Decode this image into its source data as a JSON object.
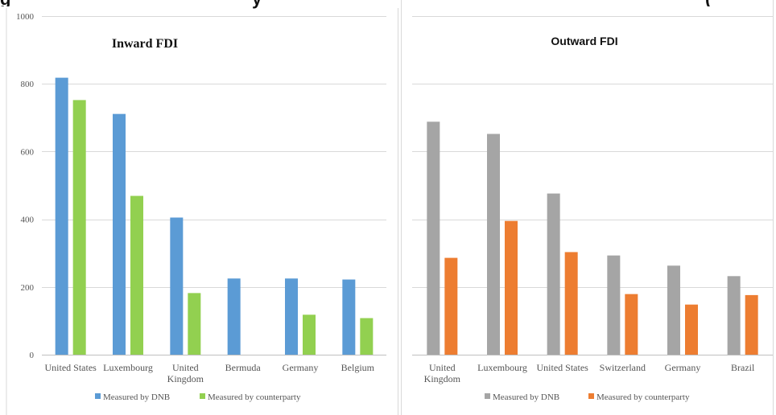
{
  "header": {
    "left_fragment": "g",
    "middle_fragment": "y",
    "right_fragment": "("
  },
  "chart_data": [
    {
      "type": "bar",
      "title": "Inward FDI",
      "categories": [
        "United States",
        "Luxembourg",
        "United Kingdom",
        "Bermuda",
        "Germany",
        "Belgium"
      ],
      "ylim": [
        0,
        1000
      ],
      "yticks": [
        0,
        200,
        400,
        600,
        800,
        1000
      ],
      "grid": true,
      "legend_position": "bottom",
      "series": [
        {
          "name": "Measured by DNB",
          "color": "#5B9BD5",
          "values": [
            818,
            711,
            405,
            225,
            225,
            222
          ]
        },
        {
          "name": "Measured by counterparty",
          "color": "#92D050",
          "values": [
            752,
            469,
            182,
            null,
            118,
            108
          ]
        }
      ]
    },
    {
      "type": "bar",
      "title": "Outward FDI",
      "categories": [
        "United Kingdom",
        "Luxembourg",
        "United States",
        "Switzerland",
        "Germany",
        "Brazil"
      ],
      "ylim": [
        0,
        1000
      ],
      "grid": true,
      "legend_position": "bottom",
      "series": [
        {
          "name": "Measured by DNB",
          "color": "#A5A5A5",
          "values": [
            688,
            652,
            476,
            293,
            263,
            232
          ]
        },
        {
          "name": "Measured by counterparty",
          "color": "#ED7D31",
          "values": [
            286,
            395,
            303,
            179,
            148,
            176
          ]
        }
      ]
    }
  ]
}
